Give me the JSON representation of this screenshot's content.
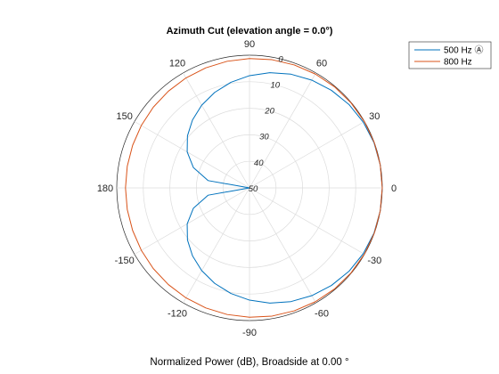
{
  "chart_data": {
    "type": "polar-line",
    "title": "Azimuth Cut (elevation angle = 0.0°)",
    "xlabel": "Normalized Power (dB), Broadside at 0.00 °",
    "theta_ticks": [
      "0",
      "30",
      "60",
      "90",
      "120",
      "150",
      "180",
      "-150",
      "-120",
      "-90",
      "-60",
      "-30"
    ],
    "theta_tick_values": [
      0,
      30,
      60,
      90,
      120,
      150,
      180,
      -150,
      -120,
      -90,
      -60,
      -30
    ],
    "radial_ticks": [
      "0",
      "10",
      "20",
      "30",
      "40",
      "50"
    ],
    "radial_tick_values": [
      0,
      10,
      20,
      30,
      40,
      50
    ],
    "r_range_db": [
      -50,
      0
    ],
    "grid": true,
    "legend_position": "top-right",
    "series": [
      {
        "name": "500 Hz Ⓐ",
        "color": "#0072BD",
        "theta_deg": [
          -180,
          -170,
          -160,
          -150,
          -140,
          -130,
          -120,
          -110,
          -100,
          -90,
          -80,
          -70,
          -60,
          -50,
          -40,
          -30,
          -20,
          -10,
          0,
          10,
          20,
          30,
          40,
          50,
          60,
          70,
          80,
          90,
          100,
          110,
          120,
          130,
          140,
          150,
          160,
          170,
          180
        ],
        "power_db": [
          -50,
          -34.2,
          -27.5,
          -22.9,
          -19.5,
          -16.6,
          -14.0,
          -11.7,
          -9.6,
          -7.7,
          -5.9,
          -4.4,
          -3.1,
          -2.0,
          -1.1,
          -0.5,
          -0.12,
          0,
          0,
          0,
          -0.12,
          -0.5,
          -1.1,
          -2.0,
          -3.1,
          -4.4,
          -5.9,
          -7.7,
          -9.6,
          -11.7,
          -14.0,
          -16.6,
          -19.5,
          -22.9,
          -27.5,
          -34.2,
          -50
        ]
      },
      {
        "name": "800 Hz",
        "color": "#D95319",
        "theta_deg": [
          -180,
          -170,
          -160,
          -150,
          -140,
          -130,
          -120,
          -110,
          -100,
          -90,
          -80,
          -70,
          -60,
          -50,
          -40,
          -30,
          -20,
          -10,
          0,
          10,
          20,
          30,
          40,
          50,
          60,
          70,
          80,
          90,
          100,
          110,
          120,
          130,
          140,
          150,
          160,
          170,
          180
        ],
        "power_db": [
          -3.3,
          -3.25,
          -3.15,
          -2.95,
          -2.7,
          -2.45,
          -2.15,
          -1.85,
          -1.55,
          -1.25,
          -0.95,
          -0.7,
          -0.45,
          -0.25,
          -0.12,
          -0.05,
          -0.01,
          0,
          0,
          0,
          -0.01,
          -0.05,
          -0.12,
          -0.25,
          -0.45,
          -0.7,
          -0.95,
          -1.25,
          -1.55,
          -1.85,
          -2.15,
          -2.45,
          -2.7,
          -2.95,
          -3.15,
          -3.25,
          -3.3
        ]
      }
    ]
  }
}
